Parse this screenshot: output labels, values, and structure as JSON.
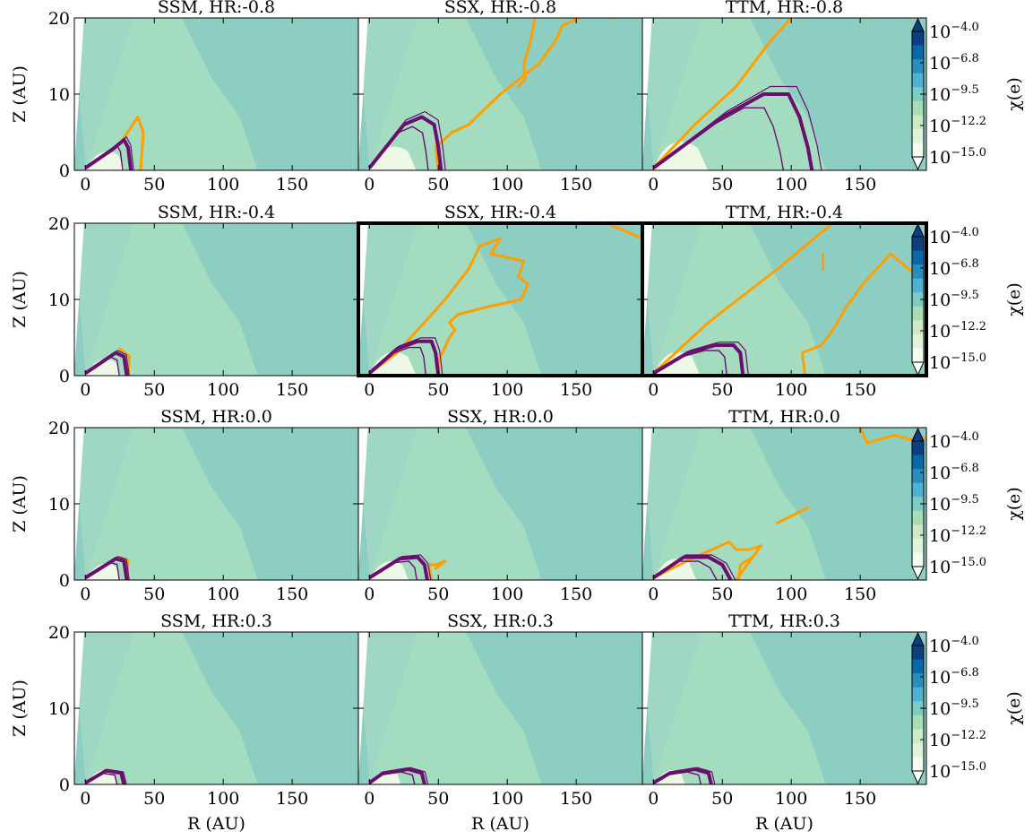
{
  "chart_data": {
    "type": "heatmap",
    "layout": {
      "rows": 4,
      "cols": 3
    },
    "x_range": [
      -8,
      198
    ],
    "y_range": [
      0,
      20
    ],
    "x_ticks": [
      0,
      50,
      100,
      150
    ],
    "y_ticks": [
      0,
      10,
      20
    ],
    "xlabel": "R (AU)",
    "ylabel": "Z (AU)",
    "colorbar": {
      "label": "χ(e)",
      "ticks": [
        "10",
        "10",
        "10",
        "10",
        "10"
      ],
      "exponents": [
        "−4.0",
        "−6.8",
        "−9.5",
        "−12.2",
        "−15.0"
      ],
      "range": [
        -15.0,
        -4.0
      ],
      "colors": [
        "#f7fcf0",
        "#e0f3db",
        "#ccebc5",
        "#a8ddb5",
        "#7bccc4",
        "#4eb3d3",
        "#2b8cbe",
        "#0868ac",
        "#084081"
      ]
    },
    "contour_colors": {
      "orange": "#ff9f00",
      "purple": "#6a0f6f"
    },
    "panels": [
      {
        "title": "SSM, HR:-0.8",
        "highlight": false,
        "bulge": 0.8,
        "orange": [
          [
            [
              40,
              0
            ],
            [
              42,
              5
            ],
            [
              38,
              7
            ],
            [
              27,
              4
            ]
          ]
        ],
        "purple": [
          [
            [
              33,
              0
            ],
            [
              31,
              3
            ],
            [
              28,
              4
            ],
            [
              20,
              2.8
            ],
            [
              0,
              0.3
            ]
          ]
        ]
      },
      {
        "title": "SSX, HR:-0.8",
        "highlight": false,
        "bulge": 1.0,
        "orange": [
          [
            [
              50,
              0
            ],
            [
              48,
              3
            ],
            [
              60,
              5
            ],
            [
              72,
              6
            ],
            [
              95,
              10
            ],
            [
              123,
              14
            ],
            [
              135,
              17
            ],
            [
              140,
              19
            ],
            [
              152,
              20
            ]
          ],
          [
            [
              120,
              20
            ],
            [
              117,
              17
            ],
            [
              112,
              14
            ],
            [
              113,
              12
            ],
            [
              108,
              11
            ]
          ],
          [
            [
              175,
              20
            ],
            [
              198,
              21
            ]
          ]
        ],
        "purple": [
          [
            [
              52,
              0
            ],
            [
              50,
              3
            ],
            [
              47,
              6
            ],
            [
              38,
              7
            ],
            [
              25,
              6
            ],
            [
              0,
              0.3
            ]
          ]
        ]
      },
      {
        "title": "TTM, HR:-0.8",
        "highlight": false,
        "bulge": 1.2,
        "orange": [
          [
            [
              0,
              0.3
            ],
            [
              30,
              6
            ],
            [
              60,
              11
            ],
            [
              85,
              17
            ],
            [
              100,
              20
            ]
          ]
        ],
        "purple": [
          [
            [
              115,
              0
            ],
            [
              112,
              3
            ],
            [
              106,
              7
            ],
            [
              98,
              10
            ],
            [
              80,
              10
            ],
            [
              50,
              7
            ],
            [
              0,
              0.3
            ]
          ]
        ]
      },
      {
        "title": "SSM, HR:-0.4",
        "highlight": false,
        "bulge": 0.7,
        "orange": [
          [
            [
              31,
              0
            ],
            [
              32,
              2.5
            ],
            [
              25,
              3.5
            ]
          ]
        ],
        "purple": [
          [
            [
              30,
              0
            ],
            [
              28,
              2.5
            ],
            [
              22,
              3
            ],
            [
              0,
              0.3
            ]
          ]
        ]
      },
      {
        "title": "SSX, HR:-0.4",
        "highlight": true,
        "bulge": 1.0,
        "orange": [
          [
            [
              50,
              0
            ],
            [
              50,
              2
            ],
            [
              53,
              3
            ],
            [
              58,
              5
            ],
            [
              62,
              6
            ],
            [
              58,
              7
            ],
            [
              64,
              8
            ],
            [
              85,
              9
            ],
            [
              110,
              10
            ],
            [
              115,
              12
            ],
            [
              108,
              13
            ],
            [
              112,
              15
            ],
            [
              88,
              16
            ],
            [
              95,
              18
            ],
            [
              80,
              17
            ],
            [
              72,
              14
            ],
            [
              55,
              10
            ],
            [
              35,
              6
            ],
            [
              20,
              3
            ],
            [
              0,
              0.3
            ]
          ],
          [
            [
              172,
              20
            ],
            [
              198,
              18
            ]
          ]
        ],
        "purple": [
          [
            [
              50,
              0
            ],
            [
              48,
              3
            ],
            [
              45,
              4.5
            ],
            [
              35,
              4.5
            ],
            [
              20,
              3.5
            ],
            [
              0,
              0.3
            ]
          ]
        ]
      },
      {
        "title": "TTM, HR:-0.4",
        "highlight": true,
        "bulge": 1.0,
        "orange": [
          [
            [
              0,
              0.3
            ],
            [
              40,
              7
            ],
            [
              90,
              14
            ],
            [
              130,
              20
            ]
          ],
          [
            [
              110,
              0
            ],
            [
              108,
              3
            ],
            [
              122,
              4
            ],
            [
              130,
              6
            ],
            [
              140,
              9
            ],
            [
              152,
              12
            ],
            [
              162,
              14
            ],
            [
              172,
              16
            ],
            [
              185,
              14
            ],
            [
              198,
              12
            ]
          ],
          [
            [
              123,
              16
            ],
            [
              123,
              14
            ]
          ]
        ],
        "purple": [
          [
            [
              65,
              0
            ],
            [
              63,
              3
            ],
            [
              58,
              4
            ],
            [
              45,
              4
            ],
            [
              25,
              3
            ],
            [
              0,
              0.3
            ]
          ]
        ]
      },
      {
        "title": "SSM, HR:0.0",
        "highlight": false,
        "bulge": 0.7,
        "orange": [
          [
            [
              30,
              0
            ],
            [
              31,
              2.5
            ],
            [
              25,
              3
            ]
          ]
        ],
        "purple": [
          [
            [
              30,
              0
            ],
            [
              28,
              2.5
            ],
            [
              22,
              2.8
            ],
            [
              0,
              0.3
            ]
          ]
        ]
      },
      {
        "title": "SSX, HR:0.0",
        "highlight": false,
        "bulge": 0.8,
        "orange": [
          [
            [
              45,
              0
            ],
            [
              43,
              2
            ],
            [
              48,
              2
            ],
            [
              55,
              2.5
            ],
            [
              48,
              1.5
            ]
          ]
        ],
        "purple": [
          [
            [
              42,
              0
            ],
            [
              40,
              2
            ],
            [
              35,
              3
            ],
            [
              22,
              2.8
            ],
            [
              0,
              0.3
            ]
          ]
        ]
      },
      {
        "title": "TTM, HR:0.0",
        "highlight": false,
        "bulge": 0.9,
        "orange": [
          [
            [
              0,
              0.3
            ],
            [
              30,
              3
            ],
            [
              55,
              5
            ],
            [
              60,
              4
            ],
            [
              70,
              4
            ],
            [
              78,
              4.5
            ],
            [
              60,
              0
            ]
          ],
          [
            [
              62,
              0
            ],
            [
              63,
              2
            ],
            [
              72,
              3
            ],
            [
              78,
              4.5
            ]
          ],
          [
            [
              90,
              7.5
            ],
            [
              112,
              9.5
            ]
          ],
          [
            [
              150,
              20
            ],
            [
              155,
              18
            ],
            [
              175,
              19
            ],
            [
              185,
              18.5
            ],
            [
              198,
              18.5
            ]
          ]
        ],
        "purple": [
          [
            [
              56,
              0
            ],
            [
              50,
              2
            ],
            [
              40,
              3
            ],
            [
              22,
              3
            ],
            [
              0,
              0.3
            ]
          ]
        ]
      },
      {
        "title": "SSM, HR:0.3",
        "highlight": false,
        "bulge": 0.6,
        "orange": [],
        "purple": [
          [
            [
              28,
              0
            ],
            [
              26,
              1.5
            ],
            [
              15,
              1.8
            ],
            [
              0,
              0.2
            ]
          ]
        ]
      },
      {
        "title": "SSX, HR:0.3",
        "highlight": false,
        "bulge": 0.6,
        "orange": [],
        "purple": [
          [
            [
              40,
              0
            ],
            [
              38,
              1.5
            ],
            [
              28,
              2
            ],
            [
              10,
              1.5
            ],
            [
              0,
              0.2
            ]
          ]
        ]
      },
      {
        "title": "TTM, HR:0.3",
        "highlight": false,
        "bulge": 0.6,
        "orange": [],
        "purple": [
          [
            [
              42,
              0
            ],
            [
              40,
              1.5
            ],
            [
              30,
              2
            ],
            [
              12,
              1.5
            ],
            [
              0,
              0.2
            ]
          ]
        ]
      }
    ]
  }
}
